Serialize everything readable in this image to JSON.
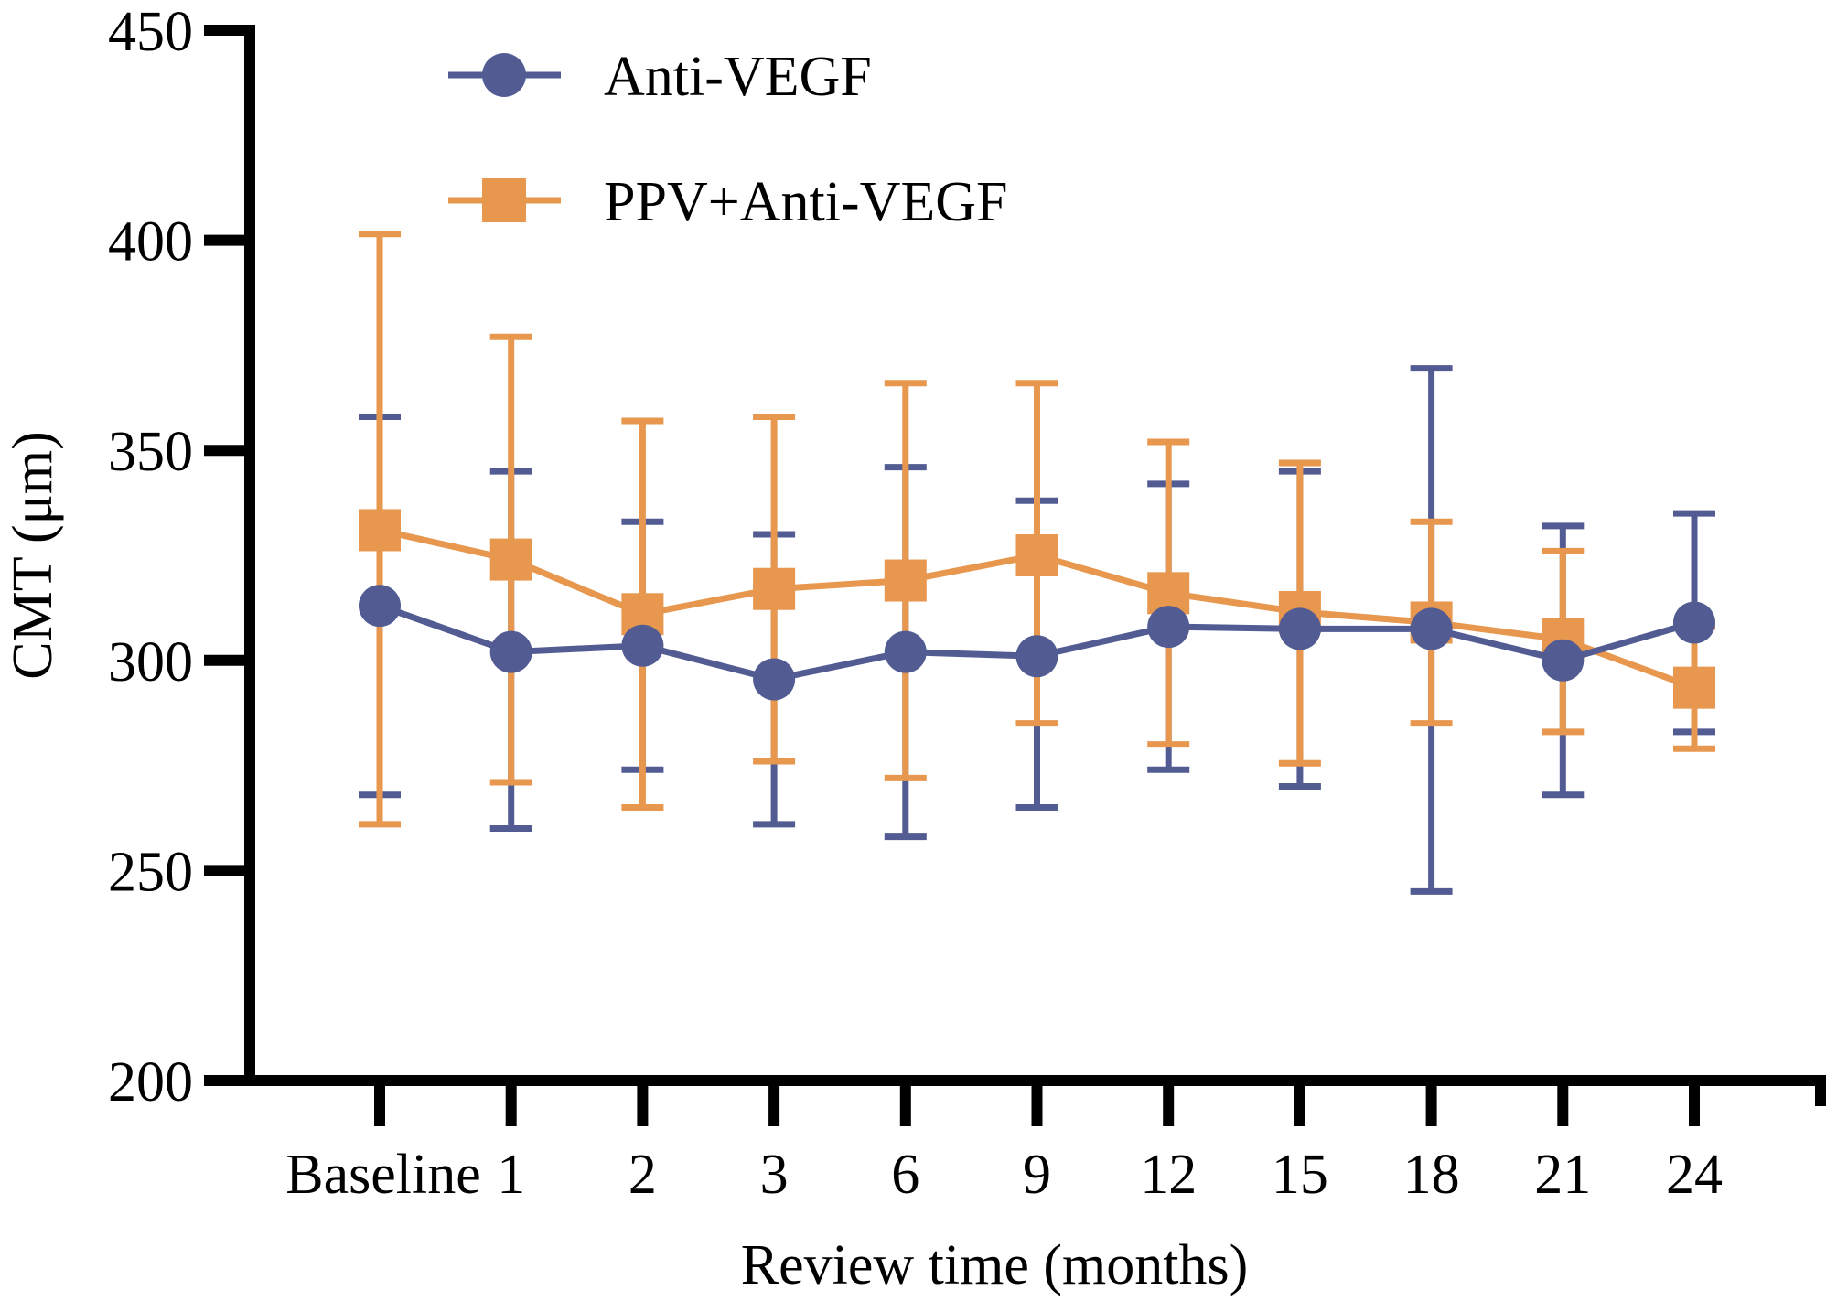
{
  "chart_data": {
    "type": "line",
    "title": "",
    "xlabel": "Review time (months)",
    "ylabel": "CMT (μm)",
    "categories": [
      "Baseline",
      "1",
      "2",
      "3",
      "6",
      "9",
      "12",
      "15",
      "18",
      "21",
      "24"
    ],
    "ylim": [
      200,
      450
    ],
    "yticks": [
      200,
      250,
      300,
      350,
      400,
      450
    ],
    "grid": false,
    "legend_position": "top-left",
    "error_bars": true,
    "series": [
      {
        "name": "Anti-VEGF",
        "marker": "circle",
        "color": "#525C93",
        "values": [
          313,
          302,
          303.5,
          295.5,
          302,
          301,
          308,
          307.5,
          307.5,
          300,
          309
        ],
        "upper": [
          358,
          345,
          333,
          330,
          346,
          338,
          342,
          345,
          369.5,
          332,
          335
        ],
        "lower": [
          268,
          260,
          274,
          261,
          258,
          265,
          274,
          270,
          245,
          268,
          283
        ]
      },
      {
        "name": "PPV+Anti-VEGF",
        "marker": "square",
        "color": "#E8974F",
        "values": [
          331,
          324,
          311,
          317,
          319,
          325,
          316,
          311.5,
          309,
          305,
          293.5
        ],
        "upper": [
          401.5,
          377,
          357,
          358,
          366,
          366,
          352,
          347,
          333,
          326,
          308
        ],
        "lower": [
          261,
          271,
          265,
          276,
          272,
          285,
          280,
          275.5,
          285,
          283,
          279
        ]
      }
    ]
  }
}
